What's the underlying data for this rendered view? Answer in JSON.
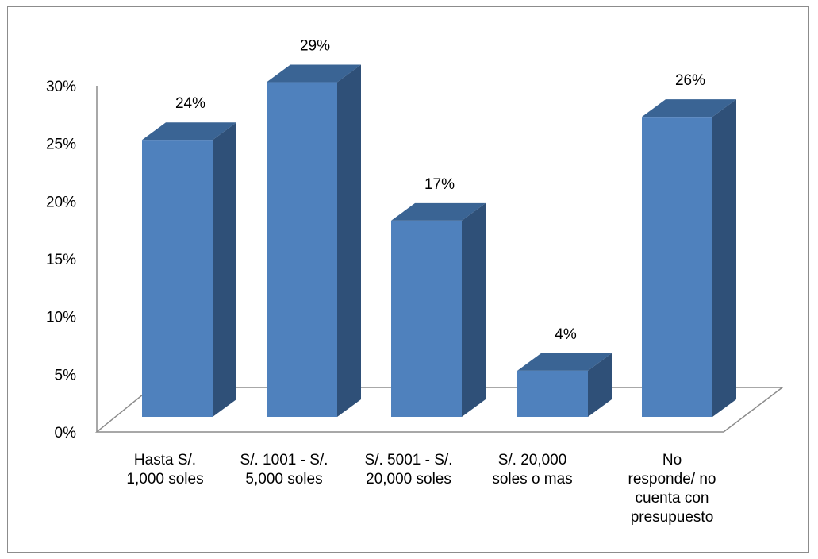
{
  "chart_data": {
    "type": "bar",
    "title": "",
    "xlabel": "",
    "ylabel": "",
    "ylim": [
      0,
      30
    ],
    "y_ticks": [
      "0%",
      "5%",
      "10%",
      "15%",
      "20%",
      "25%",
      "30%"
    ],
    "y_tick_values": [
      0,
      5,
      10,
      15,
      20,
      25,
      30
    ],
    "categories": [
      [
        "Hasta S/.",
        "1,000 soles"
      ],
      [
        "S/. 1001 - S/.",
        "5,000 soles"
      ],
      [
        "S/. 5001 - S/.",
        "20,000 soles"
      ],
      [
        "S/. 20,000",
        "soles  o mas"
      ],
      [
        "No",
        "responde/ no",
        "cuenta con",
        "presupuesto"
      ]
    ],
    "values": [
      24,
      29,
      17,
      4,
      26
    ],
    "data_labels": [
      "24%",
      "29%",
      "17%",
      "4%",
      "26%"
    ],
    "grid": false,
    "legend": "none",
    "style": "3d-column"
  },
  "colors": {
    "bar_front": "#4f81bd",
    "bar_side": "#2f5078",
    "bar_top": "#3a6494",
    "axis_line": "#8c8c8c",
    "frame_border": "#8c8c8c"
  }
}
